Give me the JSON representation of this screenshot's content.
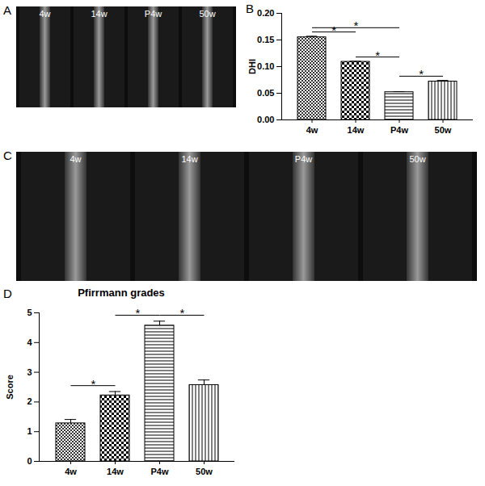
{
  "image_panels": [
    {
      "panel_label": "A",
      "labels": [
        "4w",
        "14w",
        "P4w",
        "50w"
      ]
    },
    {
      "panel_label": "C",
      "labels": [
        "4w",
        "14w",
        "P4w",
        "50w"
      ]
    }
  ],
  "chart_data": [
    {
      "type": "bar",
      "panel_label": "B",
      "y_label": "DHI",
      "categories": [
        "4w",
        "14w",
        "P4w",
        "50w"
      ],
      "values": [
        0.155,
        0.109,
        0.052,
        0.072
      ],
      "errors": [
        0.002,
        0.001,
        0.001,
        0.002
      ],
      "color": "#000000",
      "ylim": [
        0,
        0.2
      ],
      "yticks": [
        {
          "value": 0,
          "label": "0.00"
        },
        {
          "value": 0.05,
          "label": "0.05"
        },
        {
          "value": 0.1,
          "label": "0.10"
        },
        {
          "value": 0.15,
          "label": "0.15"
        },
        {
          "value": 0.2,
          "label": "0.20"
        }
      ],
      "annotations": [
        {
          "from": "4w",
          "to": "14w",
          "text": "*"
        },
        {
          "from": "4w",
          "to": "P4w",
          "text": "*"
        },
        {
          "from": "14w",
          "to": "P4w",
          "text": "*"
        },
        {
          "from": "P4w",
          "to": "50w",
          "text": "*"
        }
      ]
    },
    {
      "type": "bar",
      "panel_label": "D",
      "title": "Pfirrmann grades",
      "y_label": "Score",
      "categories": [
        "4w",
        "14w",
        "P4w",
        "50w"
      ],
      "values": [
        1.28,
        2.22,
        4.57,
        2.57
      ],
      "errors": [
        0.13,
        0.13,
        0.15,
        0.17
      ],
      "color": "#000000",
      "ylim": [
        0,
        5
      ],
      "yticks": [
        0,
        1,
        2,
        3,
        4,
        5
      ],
      "annotations": [
        {
          "from": "4w",
          "to": "14w",
          "text": "*"
        },
        {
          "from": "14w",
          "to": "P4w",
          "text": "*"
        },
        {
          "from": "P4w",
          "to": "50w",
          "text": "*"
        }
      ]
    }
  ]
}
